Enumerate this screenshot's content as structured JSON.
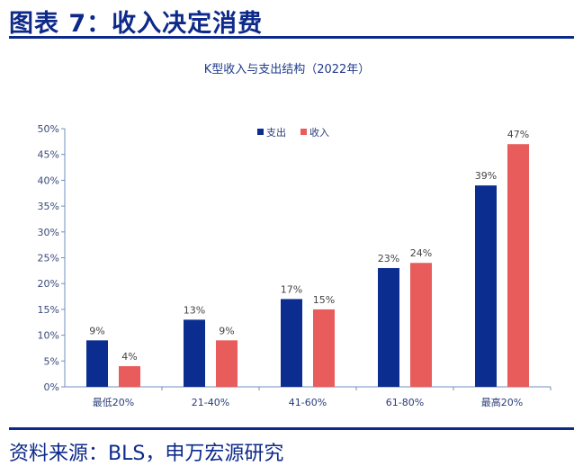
{
  "figure": {
    "title": "图表 7：收入决定消费",
    "source": "资料来源：BLS，申万宏源研究"
  },
  "chart_data": {
    "type": "bar",
    "title": "K型收入与支出结构（2022年）",
    "xlabel": "",
    "ylabel": "",
    "categories": [
      "最低20%",
      "21-40%",
      "41-60%",
      "61-80%",
      "最高20%"
    ],
    "series": [
      {
        "name": "支出",
        "color": "#0b2d8f",
        "values": [
          9,
          13,
          17,
          23,
          39
        ],
        "labels": [
          "9%",
          "13%",
          "17%",
          "23%",
          "39%"
        ]
      },
      {
        "name": "收入",
        "color": "#e85c5c",
        "values": [
          4,
          9,
          15,
          24,
          47
        ],
        "labels": [
          "4%",
          "9%",
          "15%",
          "24%",
          "47%"
        ]
      }
    ],
    "ylim": [
      0,
      50
    ],
    "yticks": [
      0,
      5,
      10,
      15,
      20,
      25,
      30,
      35,
      40,
      45,
      50
    ],
    "ytick_labels": [
      "0%",
      "5%",
      "10%",
      "15%",
      "20%",
      "25%",
      "30%",
      "35%",
      "40%",
      "45%",
      "50%"
    ],
    "grid": false,
    "legend_position": "top-center"
  }
}
